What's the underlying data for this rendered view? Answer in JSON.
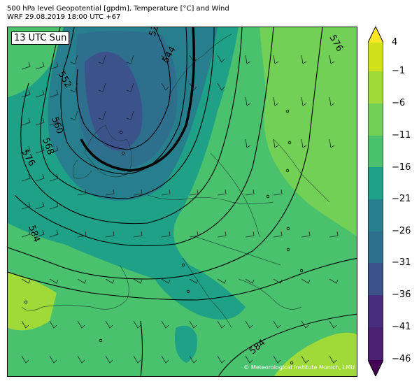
{
  "header": {
    "line1": "500 hPa level Geopotential [gpdm], Temperature [°C] and Wind",
    "line2": "WRF 29.08.2019 18:00 UTC +67"
  },
  "time_label": "13 UTC Sun",
  "copyright": "© Meteorological Institute Munich, LMU",
  "contour_labels": {
    "c536": "536",
    "c544": "544",
    "c552": "552",
    "c560": "560",
    "c568": "568",
    "c576a": "576",
    "c576b": "576",
    "c584a": "584",
    "c584b": "584"
  },
  "colorbar": {
    "ticks": [
      "4",
      "−1",
      "−6",
      "−11",
      "−16",
      "−21",
      "−26",
      "−31",
      "−36",
      "−41",
      "−46"
    ],
    "colors": {
      "above": "#fde725",
      "b4": "#d0e11c",
      "bm1": "#a0da39",
      "bm6": "#73d056",
      "bm11": "#4ac16d",
      "bm16": "#1fa187",
      "bm21": "#277f8e",
      "bm26": "#2e6f8e",
      "bm31": "#3b528b",
      "bm36": "#472d7b",
      "bm41": "#482173",
      "below": "#440154"
    }
  }
}
